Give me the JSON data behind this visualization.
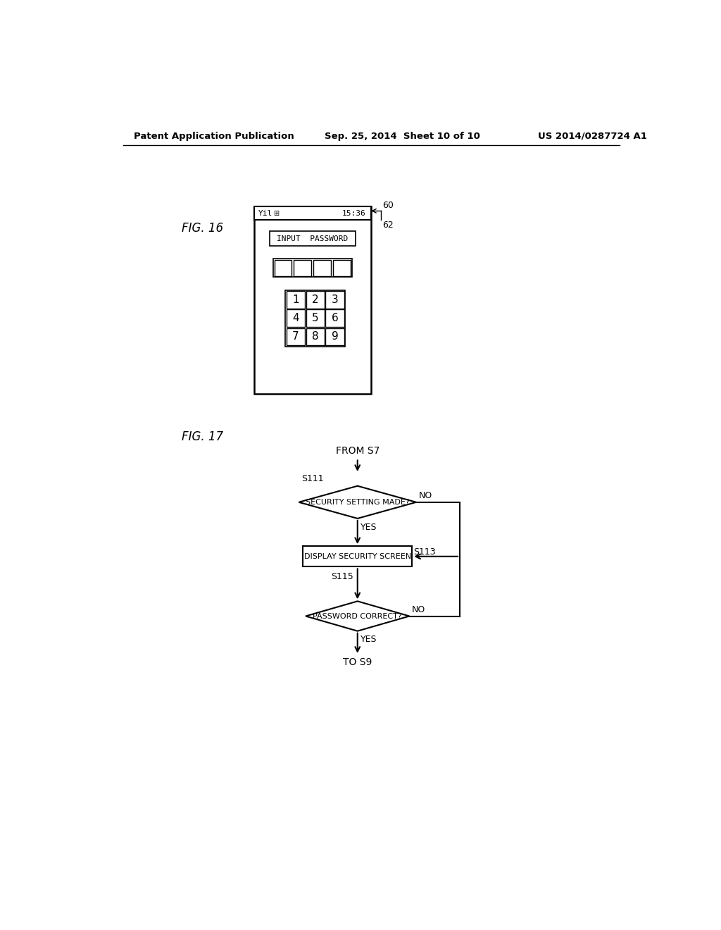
{
  "bg_color": "#ffffff",
  "header_text": "Patent Application Publication",
  "header_date": "Sep. 25, 2014  Sheet 10 of 10",
  "header_patent": "US 2014/0287724 A1",
  "fig16_label": "FIG. 16",
  "fig17_label": "FIG. 17",
  "phone_status_text": "Yil",
  "phone_time": "15:36",
  "phone_label_input": "INPUT  PASSWORD",
  "numpad": [
    [
      "1",
      "2",
      "3"
    ],
    [
      "4",
      "5",
      "6"
    ],
    [
      "7",
      "8",
      "9"
    ]
  ],
  "label_60": "60",
  "label_62": "62",
  "flow_from": "FROM S7",
  "flow_to": "TO S9",
  "s111_label": "S111",
  "s113_label": "S113",
  "s115_label": "S115",
  "diamond1_text": "SECURITY SETTING MADE?",
  "box_text": "DISPLAY SECURITY SCREEN",
  "diamond2_text": "PASSWORD CORRECT?",
  "yes_text": "YES",
  "no_text": "NO"
}
